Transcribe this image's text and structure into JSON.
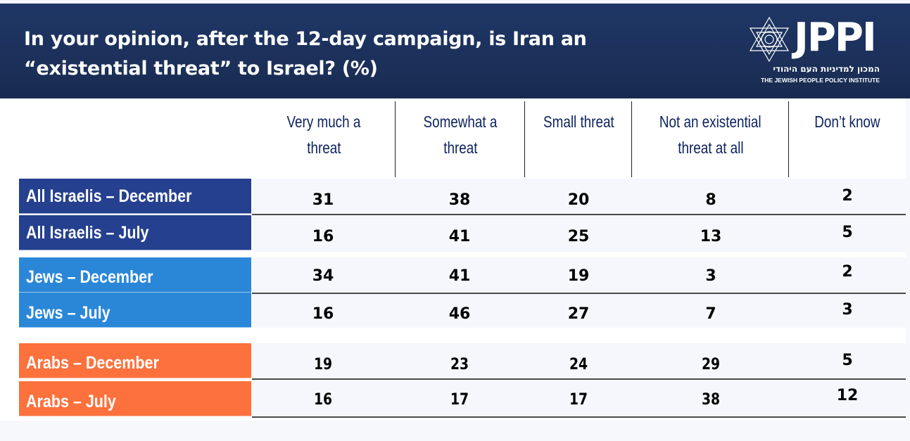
{
  "header": {
    "title_line1": "In your opinion, after the 12-day campaign, is Iran an",
    "title_line2": "“existential threat” to Israel? (%)",
    "logo": {
      "icon": "star-of-david-icon",
      "name": "JPPI",
      "hebrew": "המכון למדיניות העם היהודי",
      "english": "THE JEWISH PEOPLE POLICY INSTITUTE"
    }
  },
  "colors": {
    "header_bg": "#1e3564",
    "all_israelis": "#25408e",
    "jews": "#2a87d8",
    "arabs": "#fd713d",
    "header_text": "#0e2460"
  },
  "chart_data": {
    "type": "table",
    "title": "In your opinion, after the 12-day campaign, is Iran an “existential threat” to Israel? (%)",
    "columns": [
      "Very much a threat",
      "Somewhat a threat",
      "Small threat",
      "Not an existential threat at all",
      "Don’t know"
    ],
    "column_lines": [
      [
        "Very much a",
        "threat"
      ],
      [
        "Somewhat a",
        "threat"
      ],
      [
        "Small threat"
      ],
      [
        "Not an existential",
        "threat at all"
      ],
      [
        "Don’t know"
      ]
    ],
    "rows": [
      {
        "label": "All Israelis – December",
        "group": "all_israelis",
        "values": [
          31,
          38,
          20,
          8,
          2
        ]
      },
      {
        "label": "All Israelis – July",
        "group": "all_israelis",
        "values": [
          16,
          41,
          25,
          13,
          5
        ]
      },
      {
        "label": "Jews – December",
        "group": "jews",
        "values": [
          34,
          41,
          19,
          3,
          2
        ]
      },
      {
        "label": "Jews – July",
        "group": "jews",
        "values": [
          16,
          46,
          27,
          7,
          3
        ]
      },
      {
        "label": "Arabs – December",
        "group": "arabs",
        "values": [
          19,
          23,
          24,
          29,
          5
        ]
      },
      {
        "label": "Arabs – July",
        "group": "arabs",
        "values": [
          16,
          17,
          17,
          38,
          12
        ]
      }
    ],
    "unit": "%"
  }
}
